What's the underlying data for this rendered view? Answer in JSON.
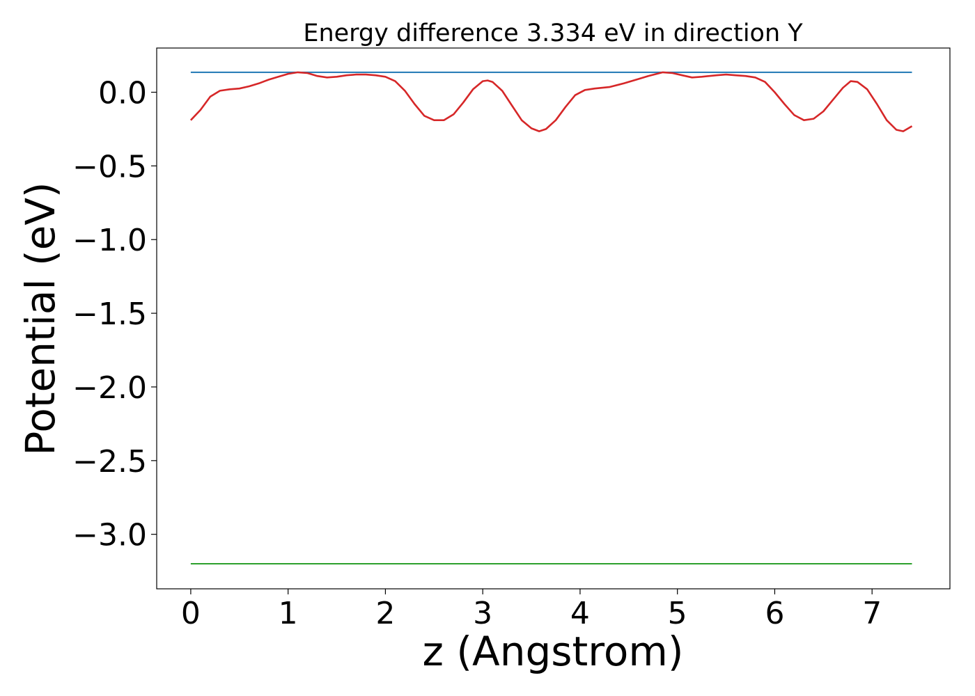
{
  "chart_data": {
    "type": "line",
    "title": "Energy difference 3.334 eV in direction Y",
    "xlabel": "z (Angstrom)",
    "ylabel": "Potential (eV)",
    "xlim": [
      -0.35,
      7.8
    ],
    "ylim": [
      -3.37,
      0.3
    ],
    "xticks": [
      0,
      1,
      2,
      3,
      4,
      5,
      6,
      7
    ],
    "yticks": [
      0.0,
      -0.5,
      -1.0,
      -1.5,
      -2.0,
      -2.5,
      -3.0
    ],
    "xtick_labels": [
      "0",
      "1",
      "2",
      "3",
      "4",
      "5",
      "6",
      "7"
    ],
    "ytick_labels": [
      "0.0",
      "−0.5",
      "−1.0",
      "−1.5",
      "−2.0",
      "−2.5",
      "−3.0"
    ],
    "grid": false,
    "legend": "none",
    "series": [
      {
        "color": "#1f77b4",
        "points": [
          [
            0,
            0.135
          ],
          [
            7.41,
            0.135
          ]
        ]
      },
      {
        "color": "#d62728",
        "points": [
          [
            0,
            -0.19
          ],
          [
            0.1,
            -0.12
          ],
          [
            0.2,
            -0.03
          ],
          [
            0.3,
            0.01
          ],
          [
            0.4,
            0.02
          ],
          [
            0.5,
            0.025
          ],
          [
            0.6,
            0.04
          ],
          [
            0.7,
            0.06
          ],
          [
            0.8,
            0.085
          ],
          [
            0.9,
            0.105
          ],
          [
            1.0,
            0.125
          ],
          [
            1.1,
            0.135
          ],
          [
            1.2,
            0.13
          ],
          [
            1.3,
            0.11
          ],
          [
            1.4,
            0.1
          ],
          [
            1.5,
            0.105
          ],
          [
            1.6,
            0.115
          ],
          [
            1.7,
            0.12
          ],
          [
            1.8,
            0.12
          ],
          [
            1.9,
            0.115
          ],
          [
            2.0,
            0.105
          ],
          [
            2.1,
            0.075
          ],
          [
            2.2,
            0.01
          ],
          [
            2.3,
            -0.08
          ],
          [
            2.4,
            -0.16
          ],
          [
            2.5,
            -0.19
          ],
          [
            2.6,
            -0.19
          ],
          [
            2.7,
            -0.15
          ],
          [
            2.8,
            -0.07
          ],
          [
            2.9,
            0.02
          ],
          [
            3.0,
            0.075
          ],
          [
            3.05,
            0.08
          ],
          [
            3.1,
            0.07
          ],
          [
            3.2,
            0.01
          ],
          [
            3.3,
            -0.09
          ],
          [
            3.4,
            -0.19
          ],
          [
            3.5,
            -0.245
          ],
          [
            3.58,
            -0.265
          ],
          [
            3.65,
            -0.25
          ],
          [
            3.75,
            -0.19
          ],
          [
            3.85,
            -0.1
          ],
          [
            3.95,
            -0.02
          ],
          [
            4.05,
            0.015
          ],
          [
            4.15,
            0.025
          ],
          [
            4.3,
            0.035
          ],
          [
            4.45,
            0.06
          ],
          [
            4.6,
            0.09
          ],
          [
            4.7,
            0.11
          ],
          [
            4.85,
            0.135
          ],
          [
            4.95,
            0.13
          ],
          [
            5.05,
            0.115
          ],
          [
            5.15,
            0.1
          ],
          [
            5.25,
            0.105
          ],
          [
            5.4,
            0.115
          ],
          [
            5.5,
            0.12
          ],
          [
            5.6,
            0.115
          ],
          [
            5.7,
            0.11
          ],
          [
            5.8,
            0.1
          ],
          [
            5.9,
            0.07
          ],
          [
            6.0,
            0.0
          ],
          [
            6.1,
            -0.08
          ],
          [
            6.2,
            -0.155
          ],
          [
            6.3,
            -0.19
          ],
          [
            6.4,
            -0.18
          ],
          [
            6.5,
            -0.13
          ],
          [
            6.6,
            -0.05
          ],
          [
            6.7,
            0.03
          ],
          [
            6.78,
            0.075
          ],
          [
            6.85,
            0.07
          ],
          [
            6.95,
            0.02
          ],
          [
            7.05,
            -0.08
          ],
          [
            7.15,
            -0.19
          ],
          [
            7.25,
            -0.255
          ],
          [
            7.32,
            -0.265
          ],
          [
            7.41,
            -0.23
          ]
        ]
      },
      {
        "color": "#2ca02c",
        "points": [
          [
            0,
            -3.2
          ],
          [
            7.41,
            -3.2
          ]
        ]
      }
    ]
  }
}
